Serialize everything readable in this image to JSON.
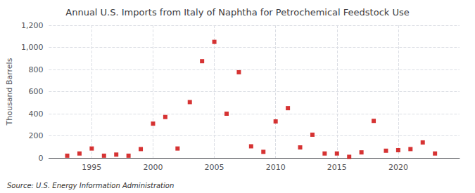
{
  "chart_data": {
    "type": "scatter",
    "title": "Annual U.S. Imports from Italy of Naphtha for Petrochemical Feedstock Use",
    "ylabel": "Thousand Barrels",
    "annotation": "Source: U.S. Energy Information Administration",
    "x": [
      1993,
      1994,
      1995,
      1996,
      1997,
      1998,
      1999,
      2000,
      2001,
      2002,
      2003,
      2004,
      2005,
      2006,
      2007,
      2008,
      2009,
      2010,
      2011,
      2012,
      2013,
      2014,
      2015,
      2016,
      2017,
      2018,
      2019,
      2020,
      2021,
      2022,
      2023
    ],
    "values": [
      20,
      40,
      85,
      20,
      30,
      20,
      80,
      310,
      370,
      85,
      505,
      875,
      1050,
      400,
      775,
      105,
      55,
      330,
      450,
      95,
      210,
      40,
      40,
      10,
      50,
      335,
      65,
      70,
      80,
      140,
      40
    ],
    "color": "#cc0000",
    "marker": "square",
    "xlim": [
      1991.5,
      2025
    ],
    "xticks": [
      1995,
      2000,
      2005,
      2010,
      2015,
      2020
    ],
    "ylim": [
      0,
      1200
    ],
    "yticks": [
      0,
      200,
      400,
      {
        "value": 600,
        "label": "600"
      },
      800,
      {
        "value": 1000,
        "label": "1,000"
      },
      {
        "value": 1200,
        "label": "1,200"
      }
    ],
    "grid": true
  }
}
